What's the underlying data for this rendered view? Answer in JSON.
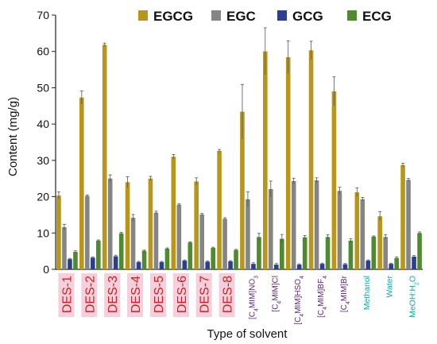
{
  "chart_data": {
    "type": "bar",
    "title": "",
    "xlabel": "Type of solvent",
    "ylabel": "Content (mg/g)",
    "ylim": [
      0,
      70
    ],
    "yticks": [
      0,
      10,
      20,
      30,
      40,
      50,
      60,
      70
    ],
    "grid": false,
    "legend_position": "top",
    "categories": [
      {
        "label": "DES-1",
        "style": "des"
      },
      {
        "label": "DES-2",
        "style": "des"
      },
      {
        "label": "DES-3",
        "style": "des"
      },
      {
        "label": "DES-4",
        "style": "des"
      },
      {
        "label": "DES-5",
        "style": "des"
      },
      {
        "label": "DES-6",
        "style": "des"
      },
      {
        "label": "DES-7",
        "style": "des"
      },
      {
        "label": "DES-8",
        "style": "des"
      },
      {
        "label": "[C4MIM]NO3",
        "style": "il"
      },
      {
        "label": "[C4MIM]Cl",
        "style": "il"
      },
      {
        "label": "[C4MIM]HSO4",
        "style": "il"
      },
      {
        "label": "[C4MIM]BF4",
        "style": "il"
      },
      {
        "label": "[C4MIM]Br",
        "style": "il"
      },
      {
        "label": "Methanol",
        "style": "conv"
      },
      {
        "label": "Water",
        "style": "conv"
      },
      {
        "label": "MeOH:H2O",
        "style": "conv"
      }
    ],
    "series": [
      {
        "name": "EGCG",
        "color": "#b8961a",
        "values": [
          20.3,
          47.3,
          61.8,
          24.0,
          25.0,
          31.0,
          24.2,
          32.6,
          43.4,
          60.0,
          58.4,
          60.3,
          49.0,
          21.2,
          14.6,
          28.7
        ],
        "errors": [
          1.0,
          1.8,
          0.5,
          1.5,
          0.6,
          0.6,
          1.0,
          0.4,
          7.5,
          6.5,
          4.5,
          2.5,
          4.0,
          1.2,
          1.3,
          0.5
        ]
      },
      {
        "name": "EGC",
        "color": "#858585",
        "values": [
          11.6,
          20.2,
          25.0,
          14.2,
          15.6,
          17.8,
          15.1,
          13.9,
          19.3,
          22.1,
          24.3,
          24.5,
          21.6,
          19.3,
          8.9,
          24.6
        ],
        "errors": [
          0.8,
          0.3,
          1.0,
          0.9,
          0.4,
          0.3,
          0.3,
          0.3,
          2.0,
          2.2,
          0.8,
          0.7,
          1.0,
          0.5,
          0.6,
          0.4
        ]
      },
      {
        "name": "GCG",
        "color": "#2a3e94",
        "values": [
          2.8,
          3.2,
          3.6,
          2.0,
          2.0,
          2.4,
          2.1,
          2.2,
          1.5,
          1.3,
          1.3,
          1.5,
          1.4,
          2.4,
          1.5,
          3.5
        ],
        "errors": [
          0.2,
          0.2,
          0.3,
          0.2,
          0.2,
          0.2,
          0.2,
          0.2,
          0.3,
          0.3,
          0.2,
          0.2,
          0.2,
          0.2,
          0.2,
          0.3
        ]
      },
      {
        "name": "ECG",
        "color": "#4e8a2e",
        "values": [
          4.8,
          7.9,
          9.9,
          5.1,
          5.7,
          7.4,
          5.9,
          5.3,
          8.9,
          8.4,
          8.8,
          8.9,
          7.9,
          9.0,
          3.1,
          10.0
        ],
        "errors": [
          0.3,
          0.2,
          0.3,
          0.2,
          0.2,
          0.2,
          0.2,
          0.2,
          1.0,
          1.2,
          0.5,
          0.6,
          0.5,
          0.2,
          0.3,
          0.3
        ]
      }
    ],
    "label_colors": {
      "des": "#cc1f1f",
      "il": "#5b1f78",
      "conv": "#1aa3a3",
      "des_highlight": "#f5d0dc"
    }
  }
}
